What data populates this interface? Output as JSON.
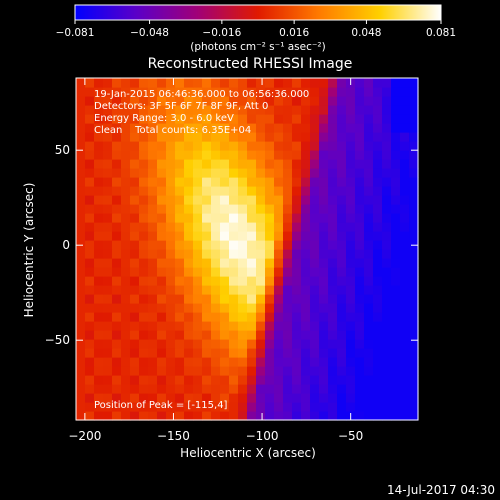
{
  "chart_data": {
    "type": "heatmap",
    "title": "Reconstructed RHESSI Image",
    "xlabel": "Heliocentric X (arcsec)",
    "ylabel": "Heliocentric Y (arcsec)",
    "xlim": [
      -205,
      -12
    ],
    "ylim": [
      -92,
      88
    ],
    "x_ticks": [
      -200,
      -150,
      -100,
      -50
    ],
    "x_tick_labels": [
      "−200",
      "−150",
      "−100",
      "−50"
    ],
    "y_ticks": [
      -50,
      0,
      50
    ],
    "y_tick_labels": [
      "−50",
      "0",
      "50"
    ],
    "colorbar": {
      "range": [
        -0.081,
        0.081
      ],
      "ticks": [
        -0.081,
        -0.048,
        -0.016,
        0.016,
        0.048,
        0.081
      ],
      "tick_labels": [
        "−0.081",
        "−0.048",
        "−0.016",
        "0.016",
        "0.048",
        "0.081"
      ],
      "units_label": "(photons cm⁻² s⁻¹ asec⁻²)",
      "colors": [
        "#0000ff",
        "#5a00c8",
        "#a00078",
        "#e01a00",
        "#ff7a00",
        "#ffd000",
        "#ffffff"
      ]
    },
    "annotations": {
      "line1": "19-Jan-2015 06:46:36.000 to 06:56:36.000",
      "line2": "Detectors: 3F 5F 6F 7F 8F 9F, Att 0",
      "line3": "Energy Range: 3.0 - 6.0 keV",
      "line4": "Clean    Total counts: 6.35E+04",
      "peak": "Position of Peak = [-115,4]"
    },
    "peak": [
      -115,
      4
    ],
    "peak_value": 0.081,
    "grid": false
  },
  "footer": {
    "date": "14-Jul-2017 04:30"
  }
}
